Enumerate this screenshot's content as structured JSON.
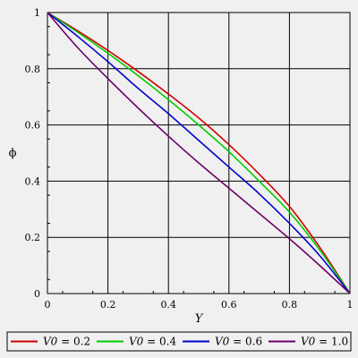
{
  "chart_data": {
    "type": "line",
    "title": "",
    "xlabel": "Y",
    "ylabel": "ϕ",
    "xlim": [
      0,
      1
    ],
    "ylim": [
      0,
      1
    ],
    "x_ticks": [
      "0",
      "0.2",
      "0.4",
      "0.6",
      "0.8",
      "1"
    ],
    "y_ticks": [
      "0",
      "0.2",
      "0.4",
      "0.6",
      "0.8",
      "1"
    ],
    "grid": true,
    "legend_position": "bottom",
    "x": [
      0,
      0.1,
      0.2,
      0.3,
      0.4,
      0.5,
      0.6,
      0.7,
      0.8,
      0.9,
      1.0
    ],
    "series": [
      {
        "name": "V0 = 0.2",
        "param": "V0",
        "value_text": "= 0.2",
        "color": "#d00000",
        "values": [
          1.0,
          0.935,
          0.865,
          0.79,
          0.71,
          0.625,
          0.53,
          0.425,
          0.31,
          0.165,
          0.0
        ]
      },
      {
        "name": "V0 = 0.4",
        "param": "V0",
        "value_text": "= 0.4",
        "color": "#00cc00",
        "values": [
          1.0,
          0.93,
          0.855,
          0.775,
          0.69,
          0.6,
          0.505,
          0.4,
          0.29,
          0.155,
          0.0
        ]
      },
      {
        "name": "V0 = 0.6",
        "param": "V0",
        "value_text": "= 0.6",
        "color": "#0000cc",
        "values": [
          1.0,
          0.915,
          0.825,
          0.73,
          0.64,
          0.545,
          0.45,
          0.355,
          0.25,
          0.135,
          0.0
        ]
      },
      {
        "name": "V0 = 1.0",
        "param": "V0",
        "value_text": "= 1.0",
        "color": "#6a006a",
        "values": [
          1.0,
          0.875,
          0.765,
          0.66,
          0.56,
          0.465,
          0.375,
          0.285,
          0.195,
          0.1,
          0.0
        ]
      }
    ]
  }
}
